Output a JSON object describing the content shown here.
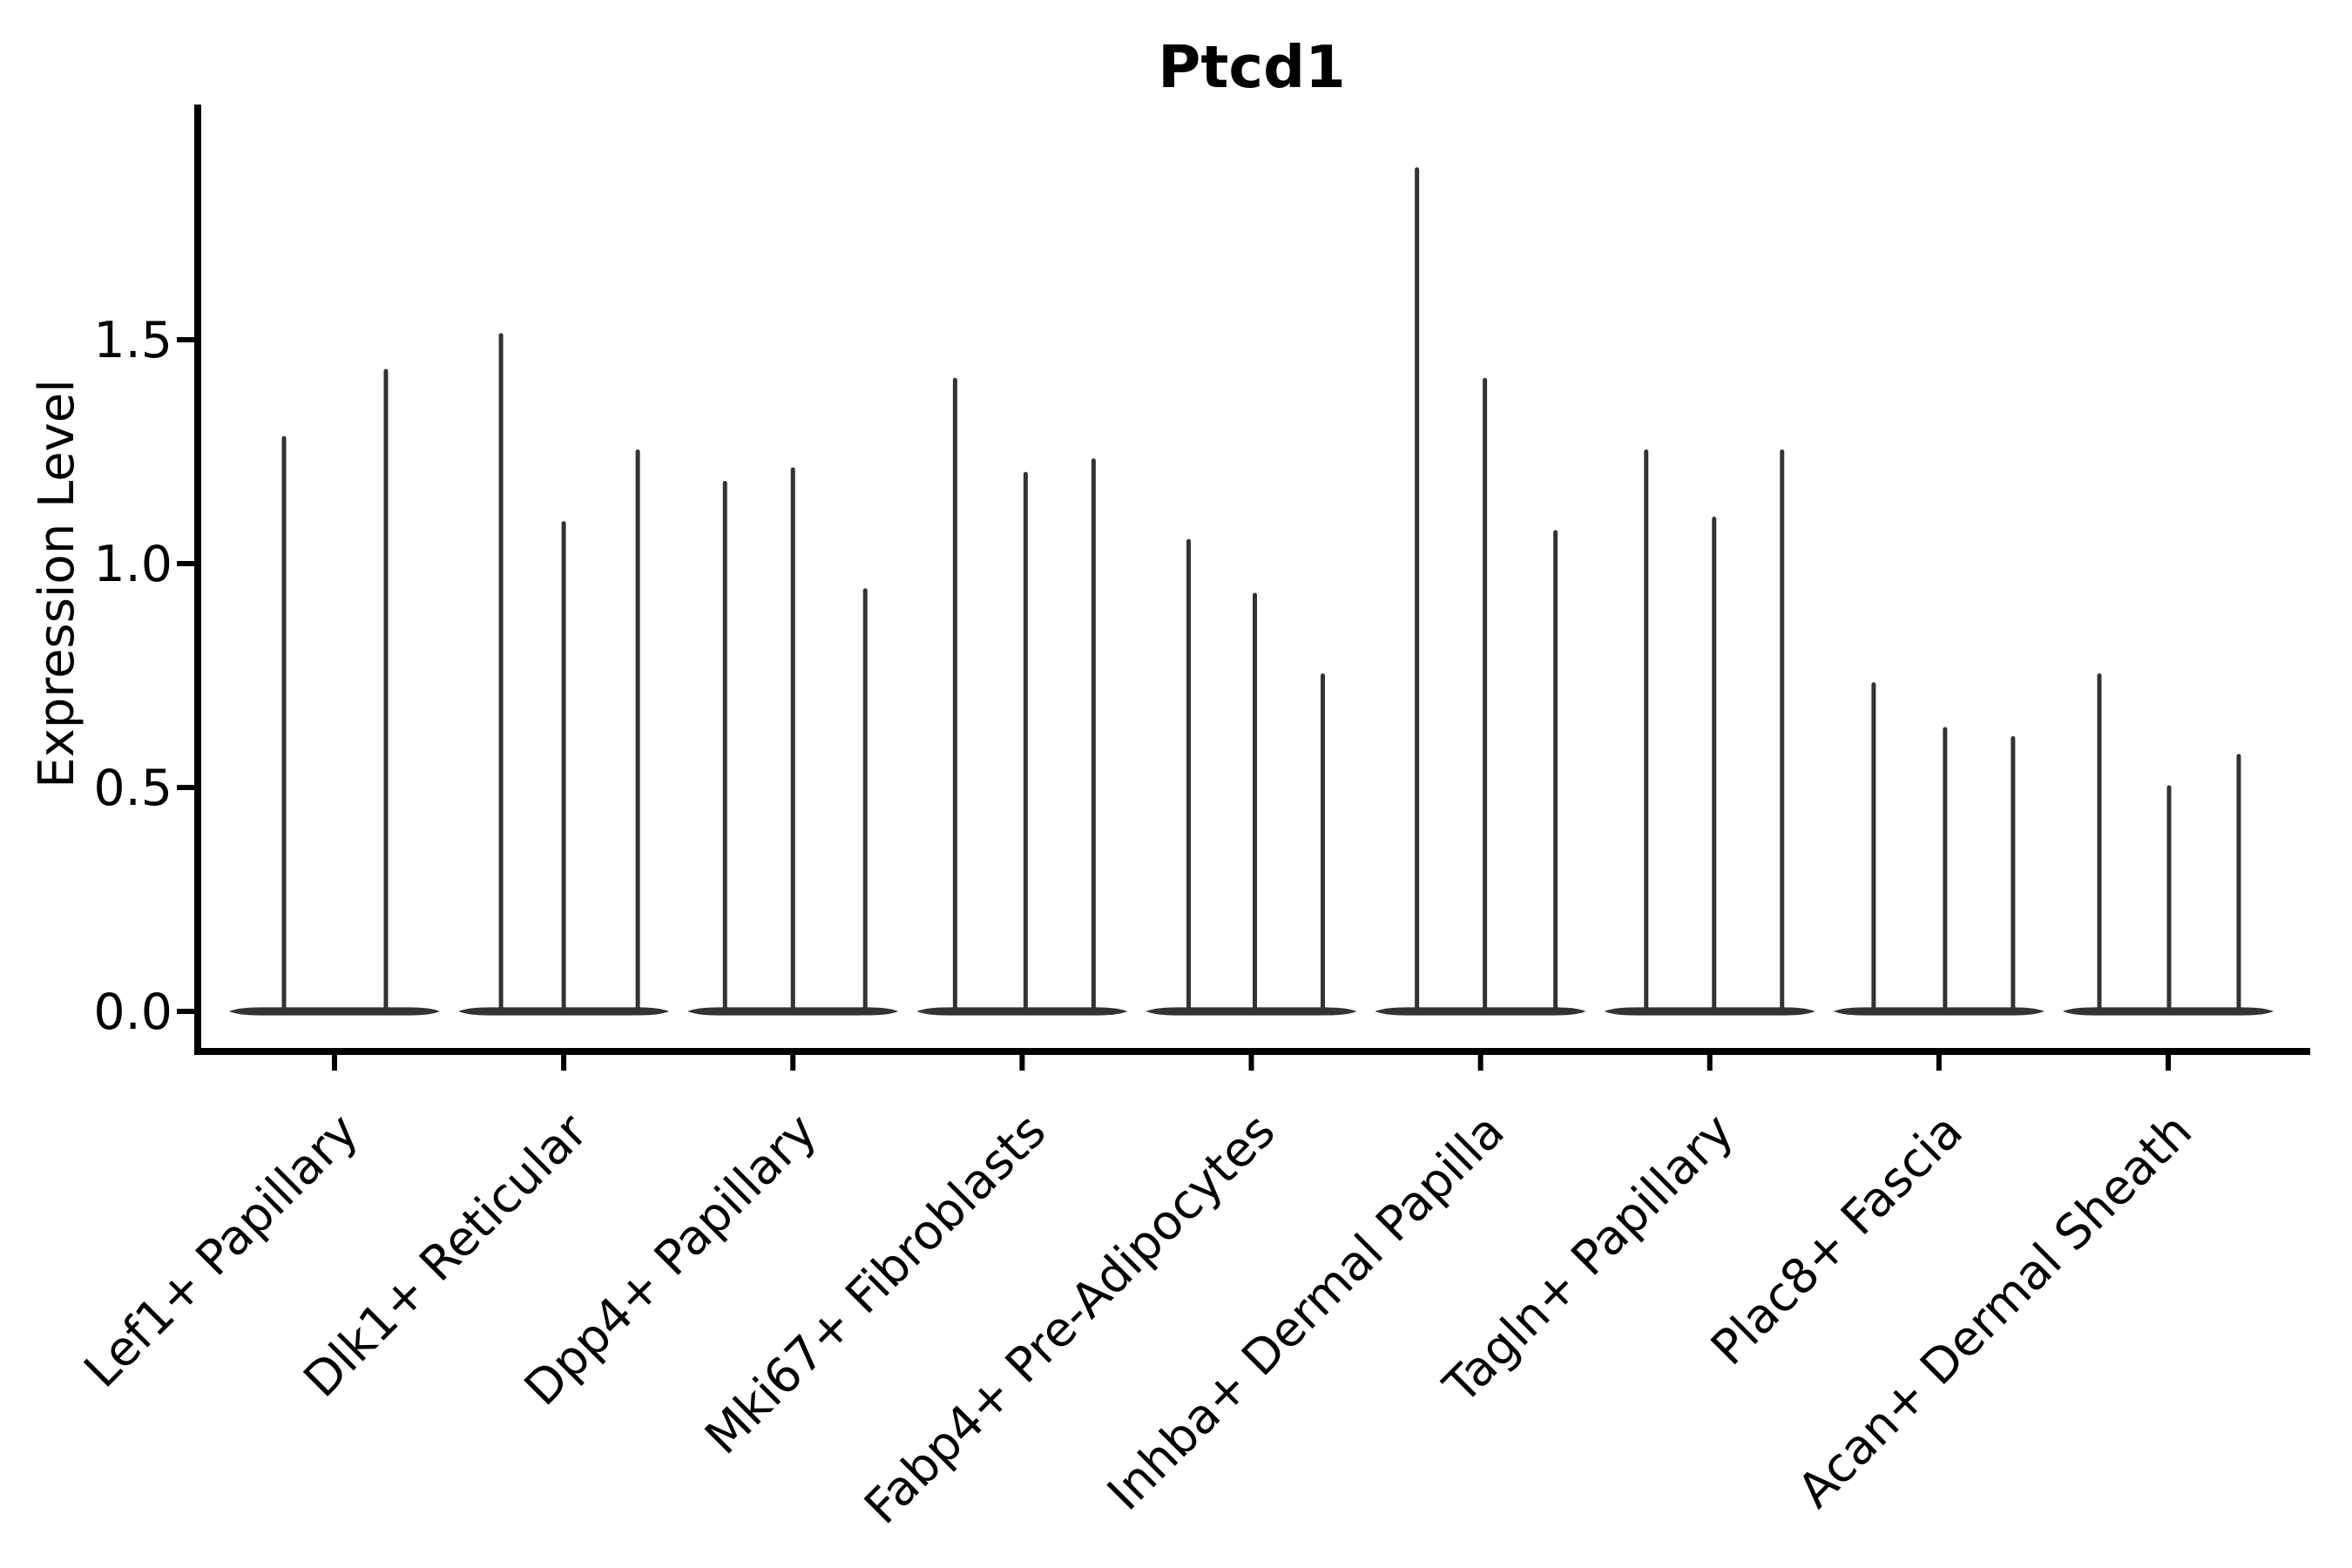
{
  "title": "Ptcd1",
  "axes": {
    "ylabel": "Expression Level",
    "ytick_labels": [
      "0.0",
      "0.5",
      "1.0",
      "1.5"
    ]
  },
  "colors": {
    "violin": "#333333",
    "spine": "#000000",
    "text": "#000000",
    "background": "#ffffff"
  },
  "chart_data": {
    "type": "violin",
    "title": "Ptcd1",
    "xlabel": "",
    "ylabel": "Expression Level",
    "yticks": [
      0.0,
      0.5,
      1.0,
      1.5
    ],
    "ytick_labels": [
      "0.0",
      "0.5",
      "1.0",
      "1.5"
    ],
    "ylim": [
      -0.09,
      2.03
    ],
    "grid": false,
    "legend": "none",
    "categories": [
      "Lef1+ Papillary",
      "Dlk1+ Reticular",
      "Dpp4+ Papillary",
      "Mki67+ Fibroblasts",
      "Fabp4+ Pre-Adipocytes",
      "Inhba+ Dermal Papilla",
      "Tagln+ Papillary",
      "Plac8+ Fascia",
      "Acan+ Dermal Sheath"
    ],
    "series": [
      {
        "name": "Lef1+ Papillary",
        "spikes": [
          {
            "dx": -58,
            "max": 1.28
          },
          {
            "dx": 59,
            "max": 1.43
          }
        ]
      },
      {
        "name": "Dlk1+ Reticular",
        "spikes": [
          {
            "dx": -72,
            "max": 1.51
          },
          {
            "dx": 0,
            "max": 1.09
          },
          {
            "dx": 85,
            "max": 1.25
          }
        ]
      },
      {
        "name": "Dpp4+ Papillary",
        "spikes": [
          {
            "dx": -78,
            "max": 1.18
          },
          {
            "dx": 0,
            "max": 1.21
          },
          {
            "dx": 83,
            "max": 0.94
          }
        ]
      },
      {
        "name": "Mki67+ Fibroblasts",
        "spikes": [
          {
            "dx": -77,
            "max": 1.41
          },
          {
            "dx": 4,
            "max": 1.2
          },
          {
            "dx": 82,
            "max": 1.23
          }
        ]
      },
      {
        "name": "Fabp4+ Pre-Adipocytes",
        "spikes": [
          {
            "dx": -72,
            "max": 1.05
          },
          {
            "dx": 4,
            "max": 0.93
          },
          {
            "dx": 82,
            "max": 0.75
          }
        ]
      },
      {
        "name": "Inhba+ Dermal Papilla",
        "spikes": [
          {
            "dx": -73,
            "max": 1.88
          },
          {
            "dx": 5,
            "max": 1.41
          },
          {
            "dx": 86,
            "max": 1.07
          }
        ]
      },
      {
        "name": "Tagln+ Papillary",
        "spikes": [
          {
            "dx": -73,
            "max": 1.25
          },
          {
            "dx": 5,
            "max": 1.1
          },
          {
            "dx": 83,
            "max": 1.25
          }
        ]
      },
      {
        "name": "Plac8+ Fascia",
        "spikes": [
          {
            "dx": -75,
            "max": 0.73
          },
          {
            "dx": 7,
            "max": 0.63
          },
          {
            "dx": 85,
            "max": 0.61
          }
        ]
      },
      {
        "name": "Acan+ Dermal Sheath",
        "spikes": [
          {
            "dx": -79,
            "max": 0.75
          },
          {
            "dx": 1,
            "max": 0.5
          },
          {
            "dx": 81,
            "max": 0.57
          }
        ]
      }
    ]
  }
}
